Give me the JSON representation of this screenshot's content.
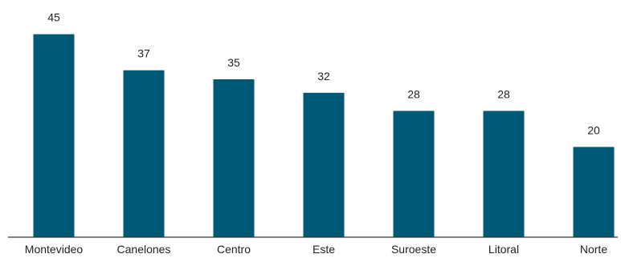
{
  "chart_data": {
    "type": "bar",
    "title": "",
    "xlabel": "",
    "ylabel": "",
    "categories": [
      "Montevideo",
      "Canelones",
      "Centro",
      "Este",
      "Suroeste",
      "Litoral",
      "Norte"
    ],
    "values": [
      45,
      37,
      35,
      32,
      28,
      28,
      20
    ],
    "value_labels": [
      "45",
      "37",
      "35",
      "32",
      "28",
      "28",
      "20"
    ],
    "ylim": [
      0,
      50
    ],
    "grid": false,
    "legend": "none",
    "colors": {
      "bar": "#005a76",
      "axis": "#333333",
      "text": "#222222"
    }
  }
}
